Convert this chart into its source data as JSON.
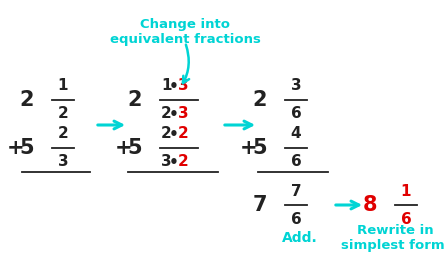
{
  "bg_color": "#ffffff",
  "cyan": "#00d4d4",
  "red": "#e00000",
  "black": "#222222",
  "label_change": "Change into\nequivalent fractions",
  "rewrite_label": "Rewrite in\nsimplest form."
}
